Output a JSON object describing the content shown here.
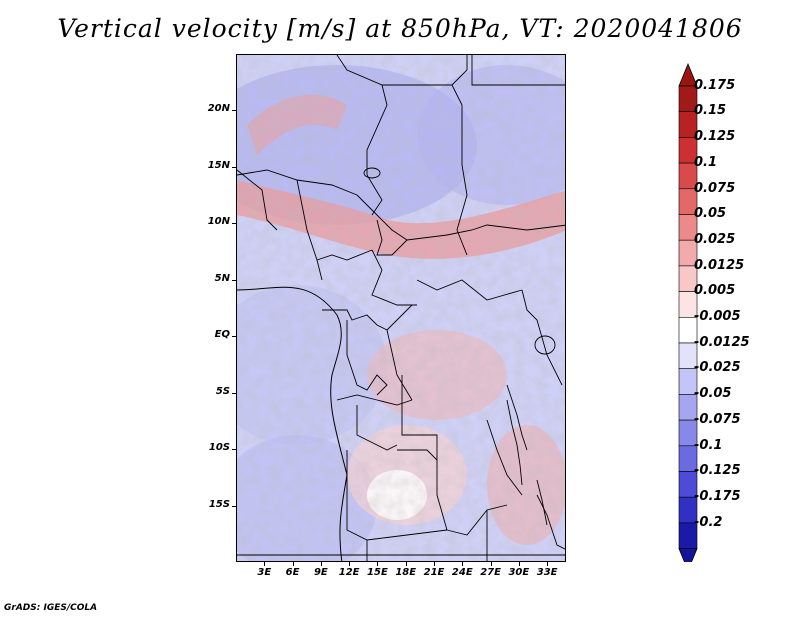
{
  "title": "Vertical velocity [m/s] at 850hPa, VT: 2020041806",
  "credit": "GrADS: IGES/COLA",
  "map": {
    "lat_range": [
      -20,
      25
    ],
    "lon_range": [
      0,
      35
    ],
    "lat_ticks": [
      {
        "value": 20,
        "label": "20N"
      },
      {
        "value": 15,
        "label": "15N"
      },
      {
        "value": 10,
        "label": "10N"
      },
      {
        "value": 5,
        "label": "5N"
      },
      {
        "value": 0,
        "label": "EQ"
      },
      {
        "value": -5,
        "label": "5S"
      },
      {
        "value": -10,
        "label": "10S"
      },
      {
        "value": -15,
        "label": "15S"
      }
    ],
    "lon_ticks": [
      {
        "value": 3,
        "label": "3E"
      },
      {
        "value": 6,
        "label": "6E"
      },
      {
        "value": 9,
        "label": "9E"
      },
      {
        "value": 12,
        "label": "12E"
      },
      {
        "value": 15,
        "label": "15E"
      },
      {
        "value": 18,
        "label": "18E"
      },
      {
        "value": 21,
        "label": "21E"
      },
      {
        "value": 24,
        "label": "24E"
      },
      {
        "value": 27,
        "label": "27E"
      },
      {
        "value": 30,
        "label": "30E"
      },
      {
        "value": 33,
        "label": "33E"
      }
    ]
  },
  "colorbar": {
    "levels": [
      {
        "label": "0.175",
        "color": "#a01a1a"
      },
      {
        "label": "0.15",
        "color": "#b82222"
      },
      {
        "label": "0.125",
        "color": "#cc3030"
      },
      {
        "label": "0.1",
        "color": "#d94a4a"
      },
      {
        "label": "0.075",
        "color": "#e46868"
      },
      {
        "label": "0.05",
        "color": "#ec8a8a"
      },
      {
        "label": "0.025",
        "color": "#f3aaaa"
      },
      {
        "label": "0.0125",
        "color": "#f8c8c8"
      },
      {
        "label": "0.005",
        "color": "#fce4e4"
      },
      {
        "label": "-0.005",
        "color": "#ffffff"
      },
      {
        "label": "-0.0125",
        "color": "#e2e2fb"
      },
      {
        "label": "-0.025",
        "color": "#c4c4f6"
      },
      {
        "label": "-0.05",
        "color": "#a6a6f0"
      },
      {
        "label": "-0.075",
        "color": "#8888ea"
      },
      {
        "label": "-0.1",
        "color": "#6a6ae2"
      },
      {
        "label": "-0.125",
        "color": "#4c4cd6"
      },
      {
        "label": "-0.175",
        "color": "#3030c4"
      },
      {
        "label": "-0.2",
        "color": "#1a1aa8"
      }
    ],
    "top_arrow_color": "#9a1414",
    "bottom_arrow_color": "#14149a"
  }
}
